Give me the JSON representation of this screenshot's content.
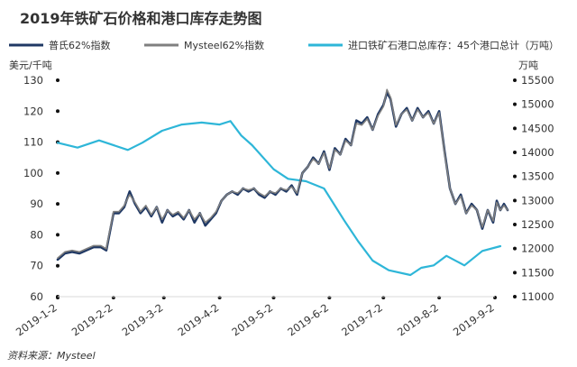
{
  "chart_data": {
    "type": "line",
    "title": "2019年铁矿石价格和港口库存走势图",
    "source": "资料来源：Mysteel",
    "left_axis": {
      "unit": "美元/千吨",
      "ticks": [
        "60",
        "70",
        "80",
        "90",
        "100",
        "110",
        "120",
        "130"
      ],
      "range": [
        60,
        130
      ]
    },
    "right_axis": {
      "unit": "万吨",
      "ticks": [
        "11000",
        "11500",
        "12000",
        "12500",
        "13000",
        "13500",
        "14000",
        "14500",
        "15000",
        "15500"
      ],
      "range": [
        11000,
        15500
      ]
    },
    "x_axis": {
      "ticks": [
        "2019-1-2",
        "2019-2-2",
        "2019-3-2",
        "2019-4-2",
        "2019-5-2",
        "2019-6-2",
        "2019-7-2",
        "2019-8-2",
        "2019-9-2"
      ],
      "range": [
        "2019-01-02",
        "2019-09-02"
      ]
    },
    "grid": false,
    "legend_position": "top",
    "colors": {
      "platts": "#1f3864",
      "mysteel": "#7f7f7f",
      "inventory": "#2eb6d8"
    },
    "series": [
      {
        "name": "普氏62%指数",
        "axis": "left",
        "points": [
          [
            "2019-01-02",
            72
          ],
          [
            "2019-01-06",
            74
          ],
          [
            "2019-01-10",
            74.5
          ],
          [
            "2019-01-14",
            74
          ],
          [
            "2019-01-18",
            75
          ],
          [
            "2019-01-22",
            76
          ],
          [
            "2019-01-26",
            76
          ],
          [
            "2019-01-29",
            75
          ],
          [
            "2019-01-31",
            81
          ],
          [
            "2019-02-02",
            87
          ],
          [
            "2019-02-05",
            87
          ],
          [
            "2019-02-08",
            89
          ],
          [
            "2019-02-11",
            94
          ],
          [
            "2019-02-14",
            90
          ],
          [
            "2019-02-17",
            87
          ],
          [
            "2019-02-20",
            89
          ],
          [
            "2019-02-23",
            86
          ],
          [
            "2019-02-26",
            89
          ],
          [
            "2019-03-01",
            84
          ],
          [
            "2019-03-04",
            88
          ],
          [
            "2019-03-07",
            86
          ],
          [
            "2019-03-10",
            87
          ],
          [
            "2019-03-13",
            85
          ],
          [
            "2019-03-16",
            88
          ],
          [
            "2019-03-19",
            84
          ],
          [
            "2019-03-22",
            87
          ],
          [
            "2019-03-25",
            83
          ],
          [
            "2019-03-28",
            85
          ],
          [
            "2019-03-31",
            87
          ],
          [
            "2019-04-03",
            91
          ],
          [
            "2019-04-06",
            93
          ],
          [
            "2019-04-09",
            94
          ],
          [
            "2019-04-12",
            93
          ],
          [
            "2019-04-15",
            95
          ],
          [
            "2019-04-18",
            94
          ],
          [
            "2019-04-21",
            95
          ],
          [
            "2019-04-24",
            93
          ],
          [
            "2019-04-27",
            92
          ],
          [
            "2019-04-30",
            94
          ],
          [
            "2019-05-03",
            93
          ],
          [
            "2019-05-06",
            95
          ],
          [
            "2019-05-09",
            94
          ],
          [
            "2019-05-12",
            96
          ],
          [
            "2019-05-15",
            93
          ],
          [
            "2019-05-18",
            100
          ],
          [
            "2019-05-21",
            102
          ],
          [
            "2019-05-24",
            105
          ],
          [
            "2019-05-27",
            103
          ],
          [
            "2019-05-30",
            107
          ],
          [
            "2019-06-02",
            101
          ],
          [
            "2019-06-05",
            108
          ],
          [
            "2019-06-08",
            106
          ],
          [
            "2019-06-11",
            111
          ],
          [
            "2019-06-14",
            109
          ],
          [
            "2019-06-17",
            117
          ],
          [
            "2019-06-20",
            116
          ],
          [
            "2019-06-23",
            118
          ],
          [
            "2019-06-26",
            114
          ],
          [
            "2019-06-29",
            119
          ],
          [
            "2019-07-02",
            122
          ],
          [
            "2019-07-04",
            126
          ],
          [
            "2019-07-06",
            124
          ],
          [
            "2019-07-09",
            115
          ],
          [
            "2019-07-12",
            119
          ],
          [
            "2019-07-15",
            121
          ],
          [
            "2019-07-18",
            117
          ],
          [
            "2019-07-21",
            121
          ],
          [
            "2019-07-24",
            118
          ],
          [
            "2019-07-27",
            120
          ],
          [
            "2019-07-30",
            116
          ],
          [
            "2019-08-02",
            120
          ],
          [
            "2019-08-05",
            107
          ],
          [
            "2019-08-08",
            95
          ],
          [
            "2019-08-11",
            90
          ],
          [
            "2019-08-14",
            93
          ],
          [
            "2019-08-17",
            87
          ],
          [
            "2019-08-20",
            90
          ],
          [
            "2019-08-23",
            88
          ],
          [
            "2019-08-26",
            82
          ],
          [
            "2019-08-29",
            88
          ],
          [
            "2019-09-01",
            84
          ],
          [
            "2019-09-03",
            91
          ],
          [
            "2019-09-05",
            88
          ],
          [
            "2019-09-07",
            90
          ],
          [
            "2019-09-09",
            88
          ]
        ]
      },
      {
        "name": "Mysteel62%指数",
        "axis": "left",
        "points": [
          [
            "2019-01-02",
            72.5
          ],
          [
            "2019-01-06",
            74.5
          ],
          [
            "2019-01-10",
            75
          ],
          [
            "2019-01-14",
            74.5
          ],
          [
            "2019-01-18",
            75.5
          ],
          [
            "2019-01-22",
            76.5
          ],
          [
            "2019-01-26",
            76.5
          ],
          [
            "2019-01-29",
            75.5
          ],
          [
            "2019-01-31",
            81.5
          ],
          [
            "2019-02-02",
            87.5
          ],
          [
            "2019-02-05",
            87.5
          ],
          [
            "2019-02-08",
            89.5
          ],
          [
            "2019-02-11",
            93
          ],
          [
            "2019-02-14",
            90.5
          ],
          [
            "2019-02-17",
            87.5
          ],
          [
            "2019-02-20",
            89.5
          ],
          [
            "2019-02-23",
            86.5
          ],
          [
            "2019-02-26",
            89
          ],
          [
            "2019-03-01",
            85
          ],
          [
            "2019-03-04",
            88
          ],
          [
            "2019-03-07",
            86.5
          ],
          [
            "2019-03-10",
            87.5
          ],
          [
            "2019-03-13",
            85.5
          ],
          [
            "2019-03-16",
            88
          ],
          [
            "2019-03-19",
            85
          ],
          [
            "2019-03-22",
            87
          ],
          [
            "2019-03-25",
            84
          ],
          [
            "2019-03-28",
            85.5
          ],
          [
            "2019-03-31",
            87.5
          ],
          [
            "2019-04-03",
            91
          ],
          [
            "2019-04-06",
            93
          ],
          [
            "2019-04-09",
            94
          ],
          [
            "2019-04-12",
            93.5
          ],
          [
            "2019-04-15",
            95
          ],
          [
            "2019-04-18",
            94.5
          ],
          [
            "2019-04-21",
            95
          ],
          [
            "2019-04-24",
            93.5
          ],
          [
            "2019-04-27",
            92.5
          ],
          [
            "2019-04-30",
            94
          ],
          [
            "2019-05-03",
            93.5
          ],
          [
            "2019-05-06",
            95
          ],
          [
            "2019-05-09",
            94.5
          ],
          [
            "2019-05-12",
            95.5
          ],
          [
            "2019-05-15",
            93.5
          ],
          [
            "2019-05-18",
            100
          ],
          [
            "2019-05-21",
            102
          ],
          [
            "2019-05-24",
            104.5
          ],
          [
            "2019-05-27",
            103
          ],
          [
            "2019-05-30",
            106.5
          ],
          [
            "2019-06-02",
            101.5
          ],
          [
            "2019-06-05",
            107.5
          ],
          [
            "2019-06-08",
            106
          ],
          [
            "2019-06-11",
            110.5
          ],
          [
            "2019-06-14",
            109
          ],
          [
            "2019-06-17",
            116
          ],
          [
            "2019-06-20",
            115.5
          ],
          [
            "2019-06-23",
            117.5
          ],
          [
            "2019-06-26",
            114
          ],
          [
            "2019-06-29",
            118.5
          ],
          [
            "2019-07-02",
            121.5
          ],
          [
            "2019-07-04",
            127
          ],
          [
            "2019-07-06",
            124.5
          ],
          [
            "2019-07-09",
            115.5
          ],
          [
            "2019-07-12",
            119
          ],
          [
            "2019-07-15",
            120.5
          ],
          [
            "2019-07-18",
            117
          ],
          [
            "2019-07-21",
            120.5
          ],
          [
            "2019-07-24",
            118
          ],
          [
            "2019-07-27",
            119.5
          ],
          [
            "2019-07-30",
            116
          ],
          [
            "2019-08-02",
            119.5
          ],
          [
            "2019-08-05",
            106.5
          ],
          [
            "2019-08-08",
            95
          ],
          [
            "2019-08-11",
            90
          ],
          [
            "2019-08-14",
            92.5
          ],
          [
            "2019-08-17",
            87
          ],
          [
            "2019-08-20",
            89.5
          ],
          [
            "2019-08-23",
            88
          ],
          [
            "2019-08-26",
            82.5
          ],
          [
            "2019-08-29",
            88
          ],
          [
            "2019-09-01",
            84.5
          ],
          [
            "2019-09-03",
            90.5
          ],
          [
            "2019-09-05",
            88
          ],
          [
            "2019-09-07",
            89.5
          ],
          [
            "2019-09-09",
            88
          ]
        ]
      },
      {
        "name": "进口铁矿石港口总库存：45个港口总计（万吨）",
        "axis": "right",
        "points": [
          [
            "2019-01-02",
            14200
          ],
          [
            "2019-01-13",
            14100
          ],
          [
            "2019-01-25",
            14250
          ],
          [
            "2019-02-10",
            14050
          ],
          [
            "2019-02-18",
            14200
          ],
          [
            "2019-03-01",
            14450
          ],
          [
            "2019-03-12",
            14580
          ],
          [
            "2019-03-23",
            14620
          ],
          [
            "2019-04-02",
            14580
          ],
          [
            "2019-04-08",
            14650
          ],
          [
            "2019-04-14",
            14350
          ],
          [
            "2019-04-20",
            14150
          ],
          [
            "2019-05-02",
            13650
          ],
          [
            "2019-05-10",
            13450
          ],
          [
            "2019-05-20",
            13400
          ],
          [
            "2019-05-30",
            13250
          ],
          [
            "2019-06-10",
            12600
          ],
          [
            "2019-06-18",
            12150
          ],
          [
            "2019-06-26",
            11750
          ],
          [
            "2019-07-05",
            11550
          ],
          [
            "2019-07-17",
            11450
          ],
          [
            "2019-07-23",
            11600
          ],
          [
            "2019-07-30",
            11650
          ],
          [
            "2019-08-06",
            11850
          ],
          [
            "2019-08-16",
            11650
          ],
          [
            "2019-08-26",
            11950
          ],
          [
            "2019-09-05",
            12050
          ]
        ]
      }
    ]
  }
}
